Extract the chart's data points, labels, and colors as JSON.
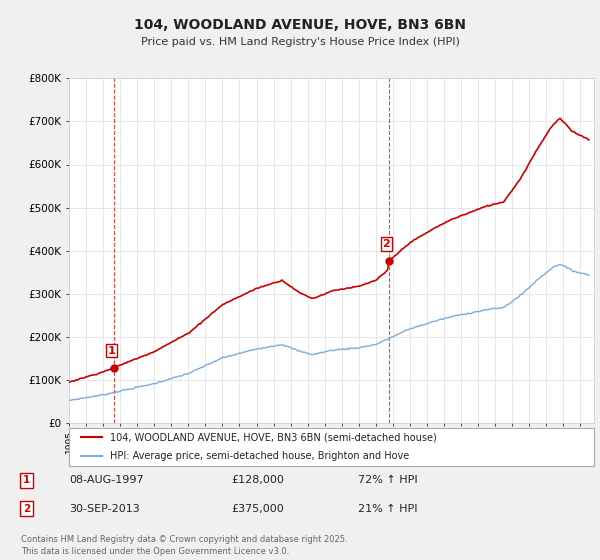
{
  "title1": "104, WOODLAND AVENUE, HOVE, BN3 6BN",
  "title2": "Price paid vs. HM Land Registry's House Price Index (HPI)",
  "ylim": [
    0,
    800000
  ],
  "yticks": [
    0,
    100000,
    200000,
    300000,
    400000,
    500000,
    600000,
    700000,
    800000
  ],
  "ytick_labels": [
    "£0",
    "£100K",
    "£200K",
    "£300K",
    "£400K",
    "£500K",
    "£600K",
    "£700K",
    "£800K"
  ],
  "background_color": "#f0f0f0",
  "plot_bg_color": "#ffffff",
  "grid_color": "#dddddd",
  "red_line_color": "#cc0000",
  "blue_line_color": "#7aaddb",
  "vline_color": "#cc0000",
  "sale1_year": 1997.62,
  "sale1_price_val": 128000,
  "sale2_year": 2013.75,
  "sale2_price_val": 375000,
  "sale1_date": "08-AUG-1997",
  "sale1_price": "£128,000",
  "sale1_hpi": "72% ↑ HPI",
  "sale2_date": "30-SEP-2013",
  "sale2_price": "£375,000",
  "sale2_hpi": "21% ↑ HPI",
  "legend_line1": "104, WOODLAND AVENUE, HOVE, BN3 6BN (semi-detached house)",
  "legend_line2": "HPI: Average price, semi-detached house, Brighton and Hove",
  "footer": "Contains HM Land Registry data © Crown copyright and database right 2025.\nThis data is licensed under the Open Government Licence v3.0.",
  "xstart_year": 1995,
  "xend_year": 2025
}
